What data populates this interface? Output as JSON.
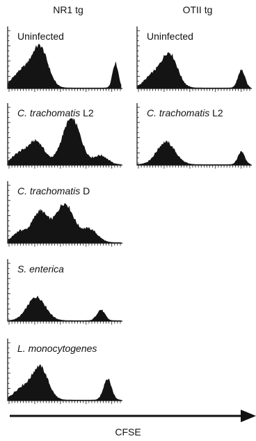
{
  "chart_data": {
    "type": "area",
    "columns": [
      {
        "title": "NR1 tg",
        "panels": [
          {
            "label_italic": "",
            "label_rest": "Uninfected",
            "peaks": [
              {
                "x": 0.28,
                "w": 0.07,
                "h": 0.68
              },
              {
                "x": 0.12,
                "w": 0.08,
                "h": 0.28
              },
              {
                "x": 0.95,
                "w": 0.025,
                "h": 0.42
              }
            ]
          },
          {
            "label_italic": "C. trachomatis",
            "label_rest": " L2",
            "peaks": [
              {
                "x": 0.25,
                "w": 0.07,
                "h": 0.38
              },
              {
                "x": 0.56,
                "w": 0.08,
                "h": 0.78
              },
              {
                "x": 0.82,
                "w": 0.06,
                "h": 0.15
              },
              {
                "x": 0.1,
                "w": 0.07,
                "h": 0.18
              }
            ]
          },
          {
            "label_italic": "C. trachomatis",
            "label_rest": " D",
            "peaks": [
              {
                "x": 0.28,
                "w": 0.07,
                "h": 0.52
              },
              {
                "x": 0.5,
                "w": 0.08,
                "h": 0.66
              },
              {
                "x": 0.72,
                "w": 0.07,
                "h": 0.22
              },
              {
                "x": 0.1,
                "w": 0.06,
                "h": 0.18
              }
            ]
          },
          {
            "label_italic": "S. enterica",
            "label_rest": "",
            "peaks": [
              {
                "x": 0.25,
                "w": 0.08,
                "h": 0.4
              },
              {
                "x": 0.82,
                "w": 0.035,
                "h": 0.18
              }
            ]
          },
          {
            "label_italic": "L. monocytogenes",
            "label_rest": "",
            "peaks": [
              {
                "x": 0.28,
                "w": 0.07,
                "h": 0.56
              },
              {
                "x": 0.12,
                "w": 0.07,
                "h": 0.2
              },
              {
                "x": 0.88,
                "w": 0.035,
                "h": 0.36
              }
            ]
          }
        ]
      },
      {
        "title": "OTII tg",
        "panels": [
          {
            "label_italic": "",
            "label_rest": "Uninfected",
            "peaks": [
              {
                "x": 0.28,
                "w": 0.07,
                "h": 0.58
              },
              {
                "x": 0.13,
                "w": 0.07,
                "h": 0.2
              },
              {
                "x": 0.92,
                "w": 0.03,
                "h": 0.3
              }
            ]
          },
          {
            "label_italic": "C. trachomatis",
            "label_rest": " L2",
            "peaks": [
              {
                "x": 0.25,
                "w": 0.08,
                "h": 0.38
              },
              {
                "x": 0.92,
                "w": 0.03,
                "h": 0.22
              }
            ]
          }
        ]
      }
    ],
    "xlabel": "CFSE",
    "grid": false
  }
}
